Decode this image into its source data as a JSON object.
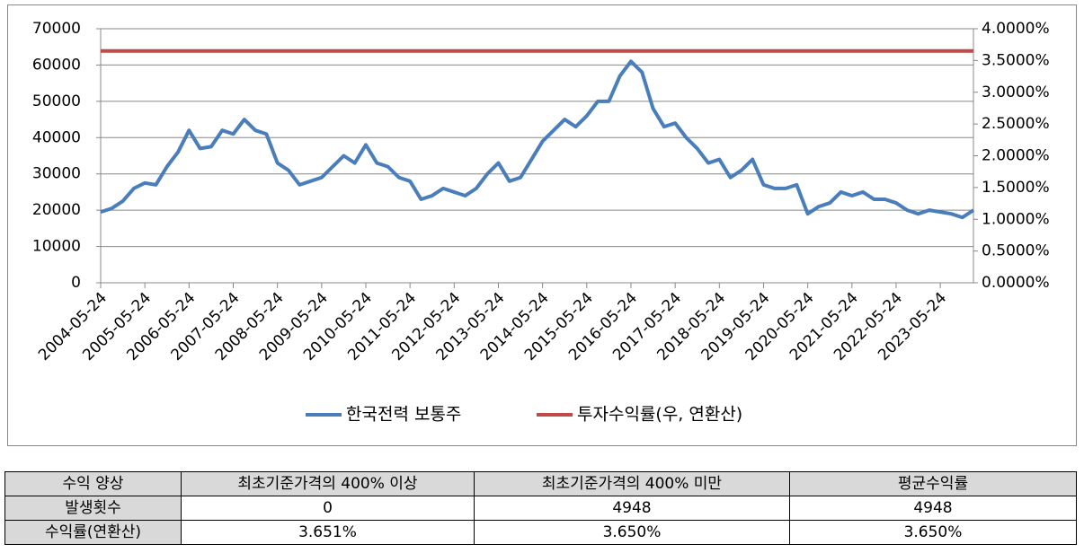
{
  "chart_data": {
    "type": "line",
    "categories": [
      "2004-05-24",
      null,
      null,
      null,
      "2005-05-24",
      null,
      null,
      null,
      "2006-05-24",
      null,
      null,
      null,
      "2007-05-24",
      null,
      null,
      null,
      "2008-05-24",
      null,
      null,
      null,
      "2009-05-24",
      null,
      null,
      null,
      "2010-05-24",
      null,
      null,
      null,
      "2011-05-24",
      null,
      null,
      null,
      "2012-05-24",
      null,
      null,
      null,
      "2013-05-24",
      null,
      null,
      null,
      "2014-05-24",
      null,
      null,
      null,
      "2015-05-24",
      null,
      null,
      null,
      "2016-05-24",
      null,
      null,
      null,
      "2017-05-24",
      null,
      null,
      null,
      "2018-05-24",
      null,
      null,
      null,
      "2019-05-24",
      null,
      null,
      null,
      "2020-05-24",
      null,
      null,
      null,
      "2021-05-24",
      null,
      null,
      null,
      "2022-05-24",
      null,
      null,
      null,
      "2023-05-24",
      null,
      null,
      null
    ],
    "series": [
      {
        "name": "한국전력 보통주",
        "color": "#4a7ebb",
        "values": [
          19500,
          20500,
          22500,
          26000,
          27500,
          27000,
          32000,
          36000,
          42000,
          37000,
          37500,
          42000,
          41000,
          45000,
          42000,
          41000,
          33000,
          31000,
          27000,
          28000,
          29000,
          32000,
          35000,
          33000,
          38000,
          33000,
          32000,
          29000,
          28000,
          23000,
          24000,
          26000,
          25000,
          24000,
          26000,
          30000,
          33000,
          28000,
          29000,
          34000,
          39000,
          42000,
          45000,
          43000,
          46000,
          50000,
          50000,
          57000,
          61000,
          58000,
          48000,
          43000,
          44000,
          40000,
          37000,
          33000,
          34000,
          29000,
          31000,
          34000,
          27000,
          26000,
          26000,
          27000,
          19000,
          21000,
          22000,
          25000,
          24000,
          25000,
          23000,
          23000,
          22000,
          20000,
          19000,
          20000,
          19500,
          19000,
          18000,
          20000
        ]
      },
      {
        "name": "투자수익률(우, 연환산)",
        "color": "#be4b48",
        "axis": "y2",
        "values": [
          3.65,
          3.65,
          3.65,
          3.65,
          3.65,
          3.65,
          3.65,
          3.65,
          3.65,
          3.65,
          3.65,
          3.65,
          3.65,
          3.65,
          3.65,
          3.65,
          3.65,
          3.65,
          3.65,
          3.65,
          3.65,
          3.65,
          3.65,
          3.65,
          3.65,
          3.65,
          3.65,
          3.65,
          3.65,
          3.65,
          3.65,
          3.65,
          3.65,
          3.65,
          3.65,
          3.65,
          3.65,
          3.65,
          3.65,
          3.65,
          3.65,
          3.65,
          3.65,
          3.65,
          3.65,
          3.65,
          3.65,
          3.65,
          3.65,
          3.65,
          3.65,
          3.65,
          3.65,
          3.65,
          3.65,
          3.65,
          3.65,
          3.65,
          3.65,
          3.65,
          3.65,
          3.65,
          3.65,
          3.65,
          3.65,
          3.65,
          3.65,
          3.65,
          3.65,
          3.65,
          3.65,
          3.65,
          3.65,
          3.65,
          3.65,
          3.65,
          3.65,
          3.65,
          3.65,
          3.65
        ]
      }
    ],
    "ylim": [
      0,
      70000
    ],
    "yticks": [
      0,
      10000,
      20000,
      30000,
      40000,
      50000,
      60000,
      70000
    ],
    "y2lim": [
      0,
      4
    ],
    "y2ticks": [
      {
        "value": 0,
        "label": "0.0000%"
      },
      {
        "value": 0.5,
        "label": "0.5000%"
      },
      {
        "value": 1,
        "label": "1.0000%"
      },
      {
        "value": 1.5,
        "label": "1.5000%"
      },
      {
        "value": 2,
        "label": "2.0000%"
      },
      {
        "value": 2.5,
        "label": "2.5000%"
      },
      {
        "value": 3,
        "label": "3.0000%"
      },
      {
        "value": 3.5,
        "label": "3.5000%"
      },
      {
        "value": 4,
        "label": "4.0000%"
      }
    ],
    "grid": true,
    "legend": "bottom"
  },
  "table": {
    "header": [
      "수익 양상",
      "최초기준가격의 400% 이상",
      "최초기준가격의 400% 미만",
      "평균수익률"
    ],
    "rows": [
      [
        "발생횟수",
        "0",
        "4948",
        "4948"
      ],
      [
        "수익률(연환산)",
        "3.651%",
        "3.650%",
        "3.650%"
      ]
    ]
  }
}
